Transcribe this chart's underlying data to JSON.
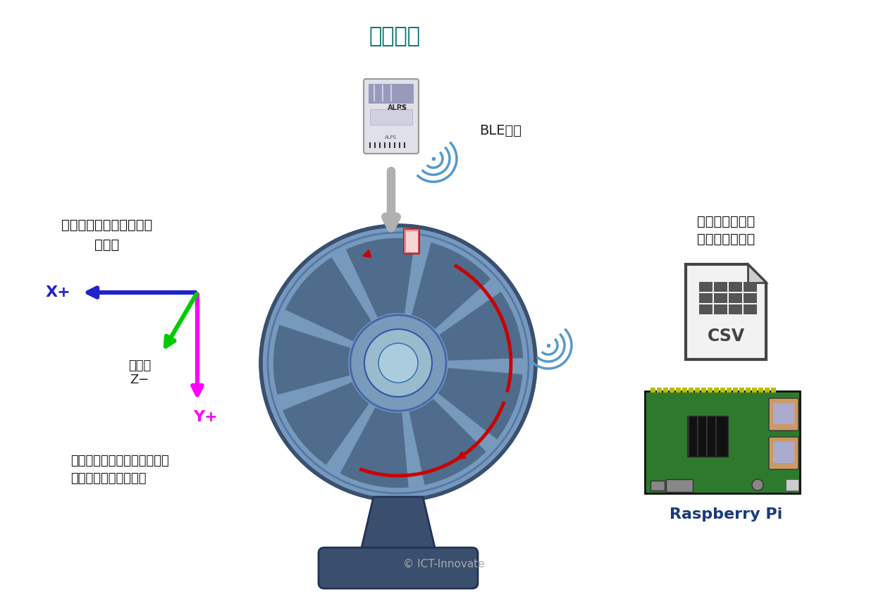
{
  "bg_color": "#ffffff",
  "title_sensor": "センサー",
  "title_sensor_color": "#007070",
  "ble_text": "BLE通信",
  "sensor_data_line1": "センサーデータ",
  "sensor_data_line2": "をファイル出力",
  "axis_title_line1": "加速度・地磁気センサー",
  "axis_title_line2": "軸方向",
  "x_label": "X+",
  "y_label": "Y+",
  "z_label1": "（奧）",
  "z_label2": "Z−",
  "note_line1": "（注）センサー写真と違い、",
  "note_line2": "　電池面が手前で設置",
  "rpi_label": "Raspberry Pi",
  "rpi_label_color": "#1a3a7a",
  "copyright": "© ICT-Innovate",
  "arrow_blue_color": "#2222cc",
  "arrow_green_color": "#00cc00",
  "arrow_magenta_color": "#ff00ff",
  "arrow_red_color": "#cc0000",
  "wifi_color": "#5599cc",
  "csv_border_color": "#444444",
  "fan_light_color": "#7799bb",
  "fan_mid_color": "#4d6a8a",
  "fan_dark_color": "#3a5070",
  "fan_base_color": "#3a4f6e",
  "hub_color": "#7a9abb",
  "hub_light_color": "#99bbcc",
  "sensor_red_box": "#cc2222"
}
